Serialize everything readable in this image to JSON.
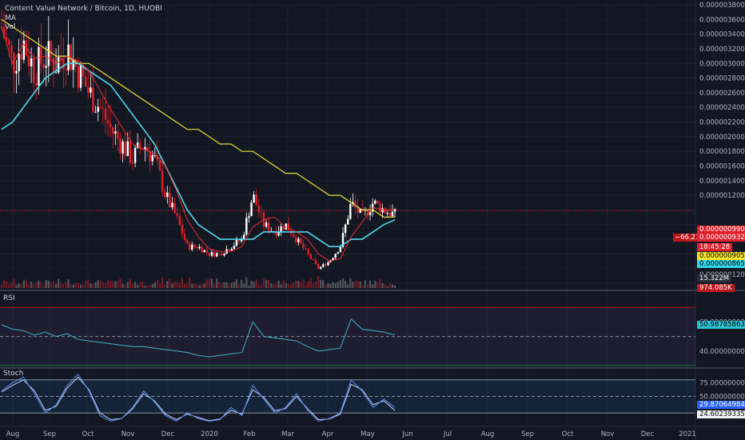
{
  "header": {
    "title": "Content Value Network / Bitcoin, 1D, HUOBI",
    "indicator_ma": "MA",
    "indicator_vol": "Vol"
  },
  "panes": {
    "rsi_label": "RSI",
    "stoch_label": "Stoch"
  },
  "price_scale_ticks": [
    "0.0000038000",
    "0.0000036000",
    "0.0000034000",
    "0.0000032000",
    "0.0000030000",
    "0.0000028000",
    "0.0000026000",
    "0.0000024000",
    "0.0000022000",
    "0.0000020000",
    "0.0000018000",
    "0.0000016000",
    "0.0000014000",
    "0.0000012000",
    "0.0000009907",
    "0.0000009326",
    "0.0000009057",
    "0.0000008651",
    "0.0000001200"
  ],
  "price_tags": {
    "last": "0.0000009907",
    "current": "0.0000009326",
    "change_pct": "−66.21%",
    "countdown": "18:45:28",
    "ma_yellow": "0.0000009057",
    "ma_cyan": "0.0000008651",
    "volume": "15.322M",
    "volume_ma": "974.085K"
  },
  "rsi_scale": {
    "t1": "60.0000000000",
    "t2": "40.0000000000",
    "value": "50.9878586318"
  },
  "stoch_scale": {
    "t1": "75.0000000000",
    "t2": "50.0000000000",
    "t3": "0.0000000000",
    "k": "29.8706498447",
    "d": "24.6023933533"
  },
  "time_axis": [
    "Aug",
    "Sep",
    "Oct",
    "Nov",
    "Dec",
    "2020",
    "Feb",
    "Mar",
    "Apr",
    "May",
    "Jun",
    "Jul",
    "Aug",
    "Sep",
    "Oct",
    "Nov",
    "Dec",
    "2021"
  ],
  "colors": {
    "bg": "#131722",
    "up": "#ffffff",
    "down": "#e0202a",
    "ma_yellow": "#e8e33a",
    "ma_cyan": "#4dd9ec",
    "ma_red": "#ff3030",
    "rsi": "#42b3c4",
    "stoch_k": "#5a8dee",
    "stoch_d": "#c7d3ff"
  },
  "chart_data": [
    {
      "type": "line",
      "title": "Content Value Network / Bitcoin, 1D, HUOBI",
      "ylim": [
        0,
        3.8e-06
      ],
      "x": [
        "Aug",
        "Aug",
        "Aug",
        "Aug",
        "Sep",
        "Sep",
        "Sep",
        "Sep",
        "Sep",
        "Oct",
        "Oct",
        "Oct",
        "Oct",
        "Nov",
        "Nov",
        "Nov",
        "Nov",
        "Dec",
        "Dec",
        "Dec",
        "Dec",
        "2020",
        "2020",
        "2020",
        "Feb",
        "Feb",
        "Feb",
        "Mar",
        "Mar",
        "Mar",
        "Apr",
        "Apr",
        "Apr",
        "Apr",
        "May",
        "May",
        "May"
      ],
      "series": [
        {
          "name": "Close",
          "values": [
            3.5e-06,
            3e-06,
            3.3e-06,
            2.9e-06,
            3.1e-06,
            3e-06,
            3.2e-06,
            2.9e-06,
            2.6e-06,
            2.4e-06,
            2.1e-06,
            1.9e-06,
            1.7e-06,
            1.9e-06,
            1.7e-06,
            1.2e-06,
            9e-07,
            5e-07,
            5e-07,
            4e-07,
            4e-07,
            5e-07,
            6e-07,
            1.2e-06,
            8e-07,
            7e-07,
            8e-07,
            6e-07,
            4e-07,
            2e-07,
            3e-07,
            5e-07,
            1.1e-06,
            9e-07,
            1.1e-06,
            1e-06,
            9.326e-07
          ]
        },
        {
          "name": "MA",
          "values": [
            3.6e-06,
            3.5e-06,
            3.4e-06,
            3.3e-06,
            3.2e-06,
            3.1e-06,
            3.1e-06,
            3e-06,
            3e-06,
            2.9e-06,
            2.8e-06,
            2.7e-06,
            2.6e-06,
            2.5e-06,
            2.4e-06,
            2.3e-06,
            2.2e-06,
            2.1e-06,
            2.1e-06,
            2e-06,
            1.9e-06,
            1.9e-06,
            1.8e-06,
            1.8e-06,
            1.7e-06,
            1.6e-06,
            1.5e-06,
            1.5e-06,
            1.4e-06,
            1.3e-06,
            1.2e-06,
            1.2e-06,
            1.1e-06,
            1e-06,
            1e-06,
            9e-07,
            9.057e-07
          ]
        },
        {
          "name": "MA",
          "values": [
            2.1e-06,
            2.2e-06,
            2.4e-06,
            2.6e-06,
            2.8e-06,
            2.9e-06,
            3e-06,
            3e-06,
            2.9e-06,
            2.8e-06,
            2.7e-06,
            2.5e-06,
            2.3e-06,
            2.1e-06,
            1.9e-06,
            1.6e-06,
            1.3e-06,
            1e-06,
            8e-07,
            7e-07,
            6e-07,
            6e-07,
            6e-07,
            6e-07,
            7e-07,
            7e-07,
            7e-07,
            7e-07,
            7e-07,
            6e-07,
            5e-07,
            5e-07,
            6e-07,
            6e-07,
            7e-07,
            8e-07,
            8.651e-07
          ]
        }
      ]
    },
    {
      "type": "line",
      "title": "RSI",
      "ylim": [
        30,
        80
      ],
      "series": [
        {
          "name": "RSI",
          "values": [
            58,
            55,
            54,
            51,
            53,
            50,
            52,
            48,
            47,
            46,
            45,
            44,
            43,
            43,
            42,
            41,
            40,
            39,
            37,
            36,
            37,
            38,
            39,
            60,
            50,
            49,
            48,
            47,
            43,
            40,
            41,
            42,
            62,
            55,
            54,
            53,
            51
          ]
        }
      ]
    },
    {
      "type": "line",
      "title": "Stoch",
      "ylim": [
        0,
        100
      ],
      "series": [
        {
          "name": "%K",
          "values": [
            60,
            75,
            85,
            55,
            20,
            35,
            70,
            90,
            60,
            15,
            5,
            10,
            30,
            60,
            40,
            15,
            5,
            20,
            10,
            5,
            8,
            30,
            15,
            70,
            45,
            20,
            30,
            55,
            25,
            5,
            10,
            20,
            80,
            60,
            30,
            45,
            29.87
          ]
        },
        {
          "name": "%D",
          "values": [
            58,
            70,
            80,
            60,
            25,
            32,
            65,
            85,
            62,
            20,
            8,
            10,
            28,
            55,
            42,
            18,
            8,
            18,
            12,
            6,
            9,
            25,
            18,
            62,
            48,
            24,
            28,
            50,
            28,
            8,
            9,
            18,
            72,
            62,
            35,
            42,
            24.6
          ]
        }
      ]
    }
  ]
}
